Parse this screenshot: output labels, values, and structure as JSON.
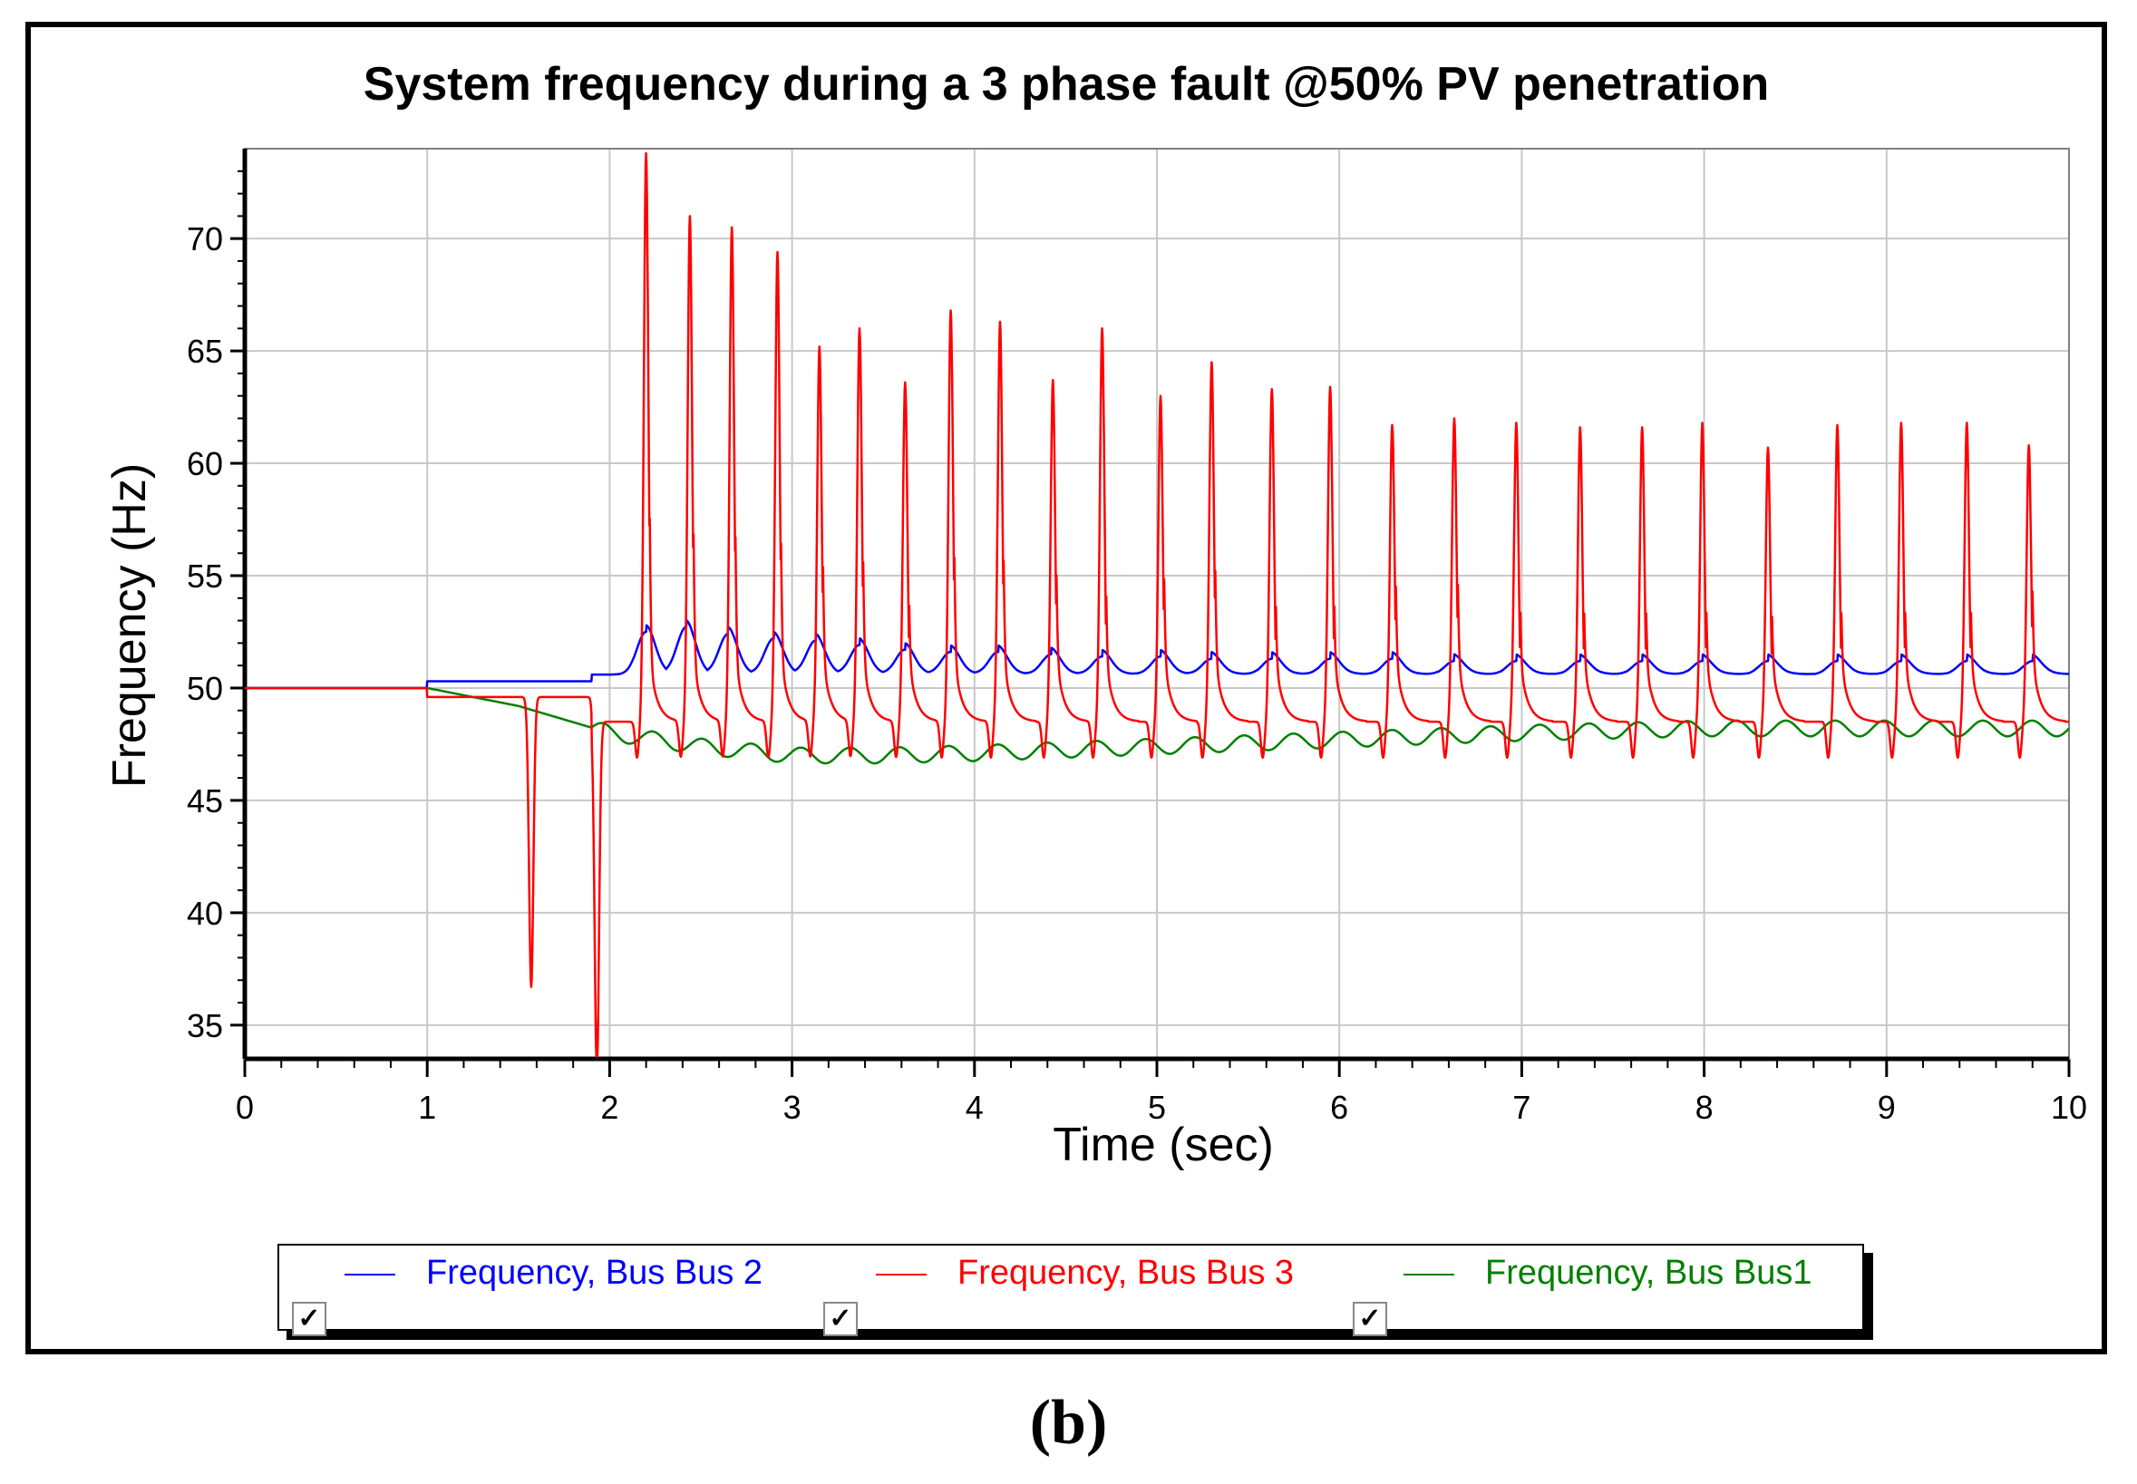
{
  "chart_data": {
    "type": "line",
    "title": "System frequency during a 3 phase fault @50% PV penetration",
    "xlabel": "Time (sec)",
    "ylabel": "Frequency (Hz)",
    "xlim": [
      0,
      10
    ],
    "ylim": [
      33.5,
      74
    ],
    "xticks": [
      "0",
      "1",
      "2",
      "3",
      "4",
      "5",
      "6",
      "7",
      "8",
      "9",
      "10"
    ],
    "yticks": [
      "35",
      "40",
      "45",
      "50",
      "55",
      "60",
      "65",
      "70"
    ],
    "grid": true,
    "legend_position": "bottom",
    "series": [
      {
        "name": "Frequency, Bus Bus 2",
        "color": "#0000ff",
        "baseline": 50.0,
        "fault_start": 1.0,
        "peaks": [
          [
            2.2,
            52.5
          ],
          [
            2.42,
            52.7
          ],
          [
            2.65,
            52.4
          ],
          [
            2.9,
            52.2
          ],
          [
            3.13,
            52.1
          ],
          [
            3.37,
            51.9
          ],
          [
            3.62,
            51.7
          ],
          [
            3.87,
            51.6
          ],
          [
            4.13,
            51.6
          ],
          [
            4.42,
            51.5
          ],
          [
            4.7,
            51.4
          ],
          [
            5.02,
            51.4
          ],
          [
            5.3,
            51.3
          ],
          [
            5.63,
            51.3
          ],
          [
            5.95,
            51.3
          ],
          [
            6.29,
            51.3
          ],
          [
            6.63,
            51.2
          ],
          [
            6.97,
            51.2
          ],
          [
            7.32,
            51.2
          ],
          [
            7.66,
            51.2
          ],
          [
            7.99,
            51.2
          ],
          [
            8.35,
            51.2
          ],
          [
            8.73,
            51.2
          ],
          [
            9.08,
            51.2
          ],
          [
            9.44,
            51.2
          ],
          [
            9.8,
            51.2
          ]
        ],
        "trough_level": 50.6
      },
      {
        "name": "Frequency, Bus Bus 3",
        "color": "#ff0000",
        "baseline": 50.0,
        "fault_start": 1.0,
        "dips": [
          [
            1.57,
            36.6
          ],
          [
            1.93,
            33.8
          ]
        ],
        "peaks": [
          [
            2.2,
            73.8
          ],
          [
            2.44,
            71.0
          ],
          [
            2.67,
            70.5
          ],
          [
            2.92,
            69.4
          ],
          [
            3.15,
            65.2
          ],
          [
            3.37,
            66.0
          ],
          [
            3.62,
            63.6
          ],
          [
            3.87,
            66.8
          ],
          [
            4.14,
            66.3
          ],
          [
            4.43,
            63.7
          ],
          [
            4.7,
            66.0
          ],
          [
            5.02,
            63.0
          ],
          [
            5.3,
            64.5
          ],
          [
            5.63,
            63.3
          ],
          [
            5.95,
            63.4
          ],
          [
            6.29,
            61.7
          ],
          [
            6.63,
            62.0
          ],
          [
            6.97,
            61.8
          ],
          [
            7.32,
            61.6
          ],
          [
            7.66,
            61.6
          ],
          [
            7.99,
            61.8
          ],
          [
            8.35,
            60.7
          ],
          [
            8.73,
            61.7
          ],
          [
            9.08,
            61.8
          ],
          [
            9.44,
            61.8
          ],
          [
            9.78,
            60.8
          ]
        ],
        "trough_level": 48.5
      },
      {
        "name": "Frequency, Bus Bus1",
        "color": "#008000",
        "baseline": 50.0,
        "fault_start": 1.0,
        "settle": [
          [
            1.0,
            50.0
          ],
          [
            1.5,
            49.2
          ],
          [
            2.0,
            48.0
          ],
          [
            2.5,
            47.4
          ],
          [
            3.0,
            47.0
          ],
          [
            3.5,
            47.0
          ],
          [
            4.0,
            47.1
          ],
          [
            5.0,
            47.4
          ],
          [
            6.0,
            47.7
          ],
          [
            7.0,
            48.0
          ],
          [
            8.0,
            48.2
          ],
          [
            9.0,
            48.2
          ],
          [
            10.0,
            48.2
          ]
        ],
        "ripple": 0.35
      }
    ]
  },
  "legend": {
    "items": [
      {
        "label": "Frequency, Bus Bus 2",
        "color": "#0000ff"
      },
      {
        "label": "Frequency, Bus Bus 3",
        "color": "#ff0000"
      },
      {
        "label": "Frequency, Bus Bus1",
        "color": "#008000"
      }
    ],
    "checkbox_glyph": "✓"
  },
  "caption": "(b)"
}
